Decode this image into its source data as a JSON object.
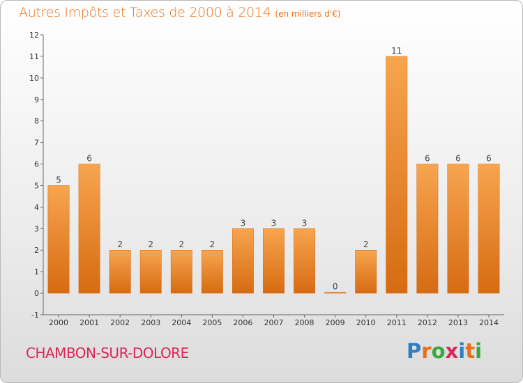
{
  "page": {
    "title": "Autres Impôts et Taxes de 2000 à 2014",
    "unit_note": "(en milliers d'€)",
    "commune": "CHAMBON-SUR-DOLORE",
    "logo": {
      "text": "Proxiti",
      "letters": [
        "P",
        "r",
        "o",
        "x",
        "i",
        "t",
        "i"
      ],
      "colors": [
        "#2f7fc1",
        "#e8701a",
        "#3aa93c",
        "#d9285a",
        "#2f7fc1",
        "#e8701a",
        "#3aa93c"
      ]
    }
  },
  "colors": {
    "bar_light": "#f7a54f",
    "bar_dark": "#d66b12",
    "title": "#e8701a",
    "commune": "#d9285a"
  },
  "chart_data": {
    "type": "bar",
    "title": "Autres Impôts et Taxes de 2000 à 2014",
    "subtitle": "(en milliers d'€)",
    "xlabel": "",
    "ylabel": "",
    "categories": [
      "2000",
      "2001",
      "2002",
      "2003",
      "2004",
      "2005",
      "2006",
      "2007",
      "2008",
      "2009",
      "2010",
      "2011",
      "2012",
      "2013",
      "2014"
    ],
    "values": [
      5,
      6,
      2,
      2,
      2,
      2,
      3,
      3,
      3,
      0,
      2,
      11,
      6,
      6,
      6
    ],
    "ylim": [
      -1,
      12
    ],
    "yticks": [
      -1,
      0,
      1,
      2,
      3,
      4,
      5,
      6,
      7,
      8,
      9,
      10,
      11,
      12
    ],
    "grid": false,
    "legend": "none"
  }
}
